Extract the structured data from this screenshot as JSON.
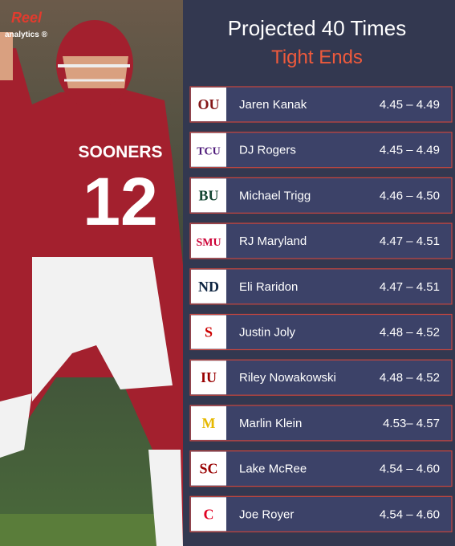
{
  "brand": {
    "name": "Reel",
    "sub": "analytics ®"
  },
  "photo": {
    "jersey_name": "SOONERS",
    "jersey_number": "12"
  },
  "header": {
    "title": "Projected 40 Times",
    "subtitle": "Tight Ends"
  },
  "rows": [
    {
      "logo": "OU",
      "logo_color": "#841617",
      "name": "Jaren Kanak",
      "time": "4.45 – 4.49"
    },
    {
      "logo": "TCU",
      "logo_color": "#4d1979",
      "name": "DJ Rogers",
      "time": "4.45 – 4.49"
    },
    {
      "logo": "BU",
      "logo_color": "#154734",
      "name": "Michael Trigg",
      "time": "4.46 – 4.50"
    },
    {
      "logo": "SMU",
      "logo_color": "#cc0035",
      "name": "RJ Maryland",
      "time": "4.47 – 4.51"
    },
    {
      "logo": "ND",
      "logo_color": "#0c2340",
      "name": "Eli Raridon",
      "time": "4.47 – 4.51"
    },
    {
      "logo": "S",
      "logo_color": "#cc0000",
      "name": "Justin Joly",
      "time": "4.48 – 4.52"
    },
    {
      "logo": "IU",
      "logo_color": "#990000",
      "name": "Riley Nowakowski",
      "time": "4.48 – 4.52"
    },
    {
      "logo": "M",
      "logo_color": "#e6b800",
      "name": "Marlin Klein",
      "time": "4.53– 4.57"
    },
    {
      "logo": "SC",
      "logo_color": "#990000",
      "name": "Lake McRee",
      "time": "4.54 – 4.60"
    },
    {
      "logo": "C",
      "logo_color": "#e00122",
      "name": "Joe Royer",
      "time": "4.54 – 4.60"
    }
  ]
}
